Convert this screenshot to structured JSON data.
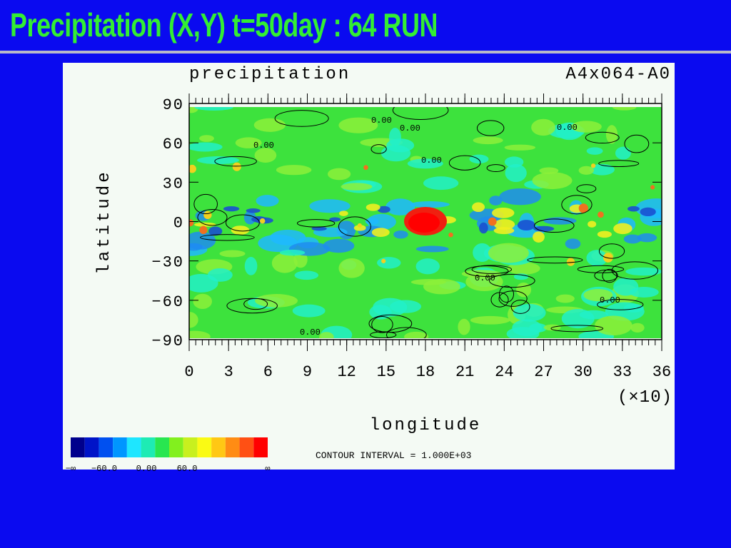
{
  "slide": {
    "title": "Precipitation (X,Y) t=50day : 64 RUN"
  },
  "plot": {
    "title_left": "precipitation",
    "title_right": "A4x064-A0",
    "y_label": "latitude",
    "x_label": "longitude",
    "x_multiplier": "(×10)",
    "yticks": [
      "90",
      "60",
      "30",
      "0",
      "−30",
      "−60",
      "−90"
    ],
    "xticks": [
      "0",
      "3",
      "6",
      "9",
      "12",
      "15",
      "18",
      "21",
      "24",
      "27",
      "30",
      "33",
      "36"
    ],
    "contour_note": "CONTOUR INTERVAL = 1.000E+03",
    "colorbar_labels": [
      "−∞",
      "−60.0",
      "0.00",
      "60.0",
      "∞"
    ],
    "contour_labels": [
      "0.00",
      "0.00",
      "0.00",
      "0.00",
      "0.00",
      "0.00",
      "0.00",
      "0.00"
    ]
  }
}
